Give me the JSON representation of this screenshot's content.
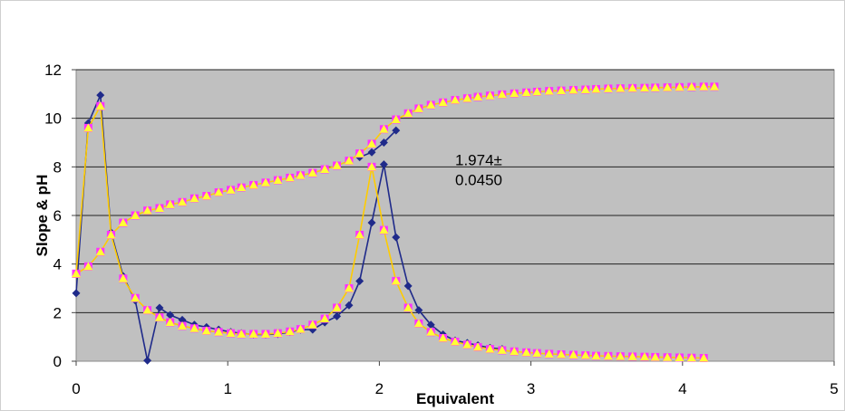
{
  "chart_data": {
    "type": "scatter",
    "title": "",
    "xlabel": "Equivalent",
    "ylabel": "Slope & pH",
    "xlim": [
      0,
      5
    ],
    "ylim": [
      0,
      12
    ],
    "x_ticks": [
      "0",
      "1",
      "2",
      "3",
      "4",
      "5"
    ],
    "y_ticks": [
      "0",
      "2",
      "4",
      "6",
      "8",
      "10",
      "12"
    ],
    "grid": true,
    "legend": "none",
    "plot_background": "#c0c0c0",
    "annotation": {
      "line1": "1.974±",
      "line2": "0.0450",
      "x": 2.5,
      "y": 7.7
    },
    "series": [
      {
        "role": "pH curve",
        "marker": "square",
        "color": "#ff33ff",
        "line_color": "#ffcc00",
        "x": [
          0,
          0.08,
          0.16,
          0.23,
          0.31,
          0.39,
          0.47,
          0.55,
          0.62,
          0.7,
          0.78,
          0.86,
          0.94,
          1.02,
          1.09,
          1.17,
          1.25,
          1.33,
          1.41,
          1.48,
          1.56,
          1.64,
          1.72,
          1.8,
          1.87,
          1.95,
          2.03,
          2.11,
          2.19,
          2.26,
          2.34,
          2.42,
          2.5,
          2.58,
          2.65,
          2.73,
          2.81,
          2.89,
          2.97,
          3.04,
          3.12,
          3.2,
          3.28,
          3.36,
          3.43,
          3.51,
          3.59,
          3.67,
          3.75,
          3.82,
          3.9,
          3.98,
          4.06,
          4.14,
          4.21
        ],
        "y": [
          3.6,
          3.9,
          4.5,
          5.2,
          5.7,
          6.0,
          6.2,
          6.3,
          6.45,
          6.55,
          6.7,
          6.8,
          6.95,
          7.05,
          7.15,
          7.25,
          7.35,
          7.45,
          7.55,
          7.65,
          7.75,
          7.9,
          8.05,
          8.25,
          8.55,
          8.95,
          9.55,
          9.95,
          10.2,
          10.4,
          10.55,
          10.65,
          10.75,
          10.82,
          10.88,
          10.93,
          10.98,
          11.02,
          11.06,
          11.09,
          11.12,
          11.14,
          11.16,
          11.18,
          11.2,
          11.22,
          11.23,
          11.24,
          11.25,
          11.26,
          11.27,
          11.28,
          11.29,
          11.3,
          11.3
        ]
      },
      {
        "role": "slope curve (fitted)",
        "marker": "square",
        "color": "#ff33ff",
        "line_color": "#ffcc00",
        "x": [
          0,
          0.08,
          0.16,
          0.23,
          0.31,
          0.39,
          0.47,
          0.55,
          0.62,
          0.7,
          0.78,
          0.86,
          0.94,
          1.02,
          1.09,
          1.17,
          1.25,
          1.33,
          1.41,
          1.48,
          1.56,
          1.64,
          1.72,
          1.8,
          1.87,
          1.95,
          2.03,
          2.11,
          2.19,
          2.26,
          2.34,
          2.42,
          2.5,
          2.58,
          2.65,
          2.73,
          2.81,
          2.89,
          2.97,
          3.04,
          3.12,
          3.2,
          3.28,
          3.36,
          3.43,
          3.51,
          3.59,
          3.67,
          3.75,
          3.82,
          3.9,
          3.98,
          4.06,
          4.14
        ],
        "y": [
          3.6,
          9.6,
          10.5,
          5.2,
          3.4,
          2.6,
          2.1,
          1.8,
          1.6,
          1.45,
          1.35,
          1.25,
          1.2,
          1.15,
          1.12,
          1.12,
          1.12,
          1.15,
          1.22,
          1.32,
          1.5,
          1.75,
          2.2,
          3.0,
          5.2,
          8.0,
          5.4,
          3.3,
          2.2,
          1.55,
          1.2,
          0.95,
          0.8,
          0.68,
          0.58,
          0.5,
          0.45,
          0.4,
          0.36,
          0.33,
          0.3,
          0.28,
          0.26,
          0.24,
          0.22,
          0.21,
          0.2,
          0.19,
          0.18,
          0.17,
          0.16,
          0.15,
          0.14,
          0.13
        ]
      },
      {
        "role": "slope curve (raw)",
        "marker": "diamond",
        "color": "#1f2a8a",
        "line_color": "#1f2a8a",
        "x": [
          0,
          0.08,
          0.16,
          0.23,
          0.31,
          0.39,
          0.47,
          0.55,
          0.62,
          0.7,
          0.78,
          0.86,
          0.94,
          1.02,
          1.09,
          1.17,
          1.25,
          1.33,
          1.41,
          1.48,
          1.56,
          1.64,
          1.72,
          1.8,
          1.87,
          1.95,
          2.03,
          2.11,
          2.19,
          2.26,
          2.34,
          2.42,
          2.5,
          2.58,
          2.65,
          2.73,
          2.81
        ],
        "y": [
          2.8,
          9.8,
          10.95,
          5.3,
          3.5,
          2.5,
          0.03,
          2.2,
          1.9,
          1.7,
          1.5,
          1.4,
          1.3,
          1.2,
          1.15,
          1.1,
          1.1,
          1.12,
          1.2,
          1.3,
          1.3,
          1.6,
          1.85,
          2.3,
          3.3,
          5.7,
          8.1,
          5.1,
          3.1,
          2.1,
          1.5,
          1.1,
          0.85,
          0.75,
          0.65,
          0.55,
          0.5
        ]
      },
      {
        "role": "pH curve (raw, hidden under yellow)",
        "marker": "diamond",
        "color": "#1f2a8a",
        "line_color": "#1f2a8a",
        "x": [
          1.87,
          1.95,
          2.03,
          2.11
        ],
        "y": [
          8.4,
          8.6,
          9.0,
          9.5
        ]
      }
    ]
  }
}
